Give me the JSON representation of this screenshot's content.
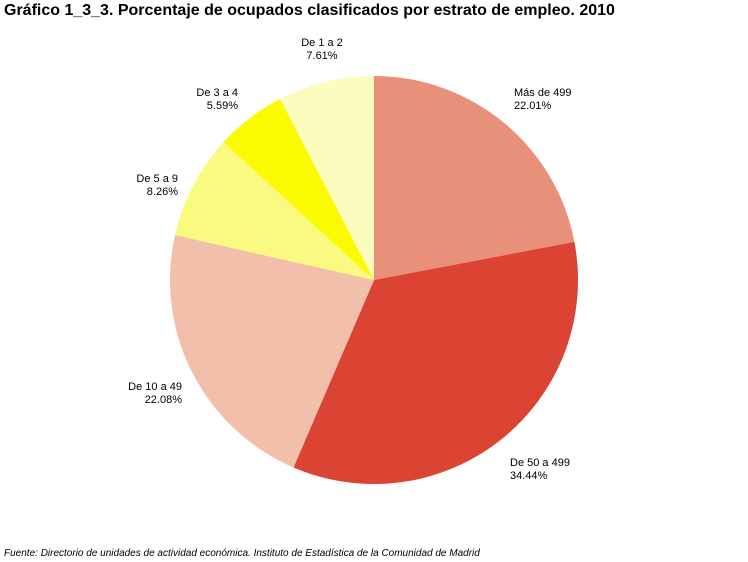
{
  "header": {
    "title": "Gráfico 1_3_3. Porcentaje de ocupados clasificados por estrato de empleo. 2010"
  },
  "footer": {
    "source": "Fuente: Directorio de unidades de actividad económica. Instituto de Estadística de la Comunidad de Madrid"
  },
  "chart_data": {
    "type": "pie",
    "title": "Gráfico 1_3_3. Porcentaje de ocupados clasificados por estrato de empleo. 2010",
    "start_angle": "12 o'clock",
    "direction": "clockwise",
    "slices": [
      {
        "label": "Más de 499",
        "value": 22.01,
        "display": "22.01%",
        "color": "#E8907A"
      },
      {
        "label": "De 50 a 499",
        "value": 34.44,
        "display": "34.44%",
        "color": "#DB4433"
      },
      {
        "label": "De 10 a 49",
        "value": 22.08,
        "display": "22.08%",
        "color": "#F2C0AA"
      },
      {
        "label": "De 5 a 9",
        "value": 8.26,
        "display": "8.26%",
        "color": "#FAFA80"
      },
      {
        "label": "De 3 a 4",
        "value": 5.59,
        "display": "5.59%",
        "color": "#FAFA00"
      },
      {
        "label": "De 1 a 2",
        "value": 7.61,
        "display": "7.61%",
        "color": "#FCFCBE"
      }
    ],
    "legend": "none"
  }
}
